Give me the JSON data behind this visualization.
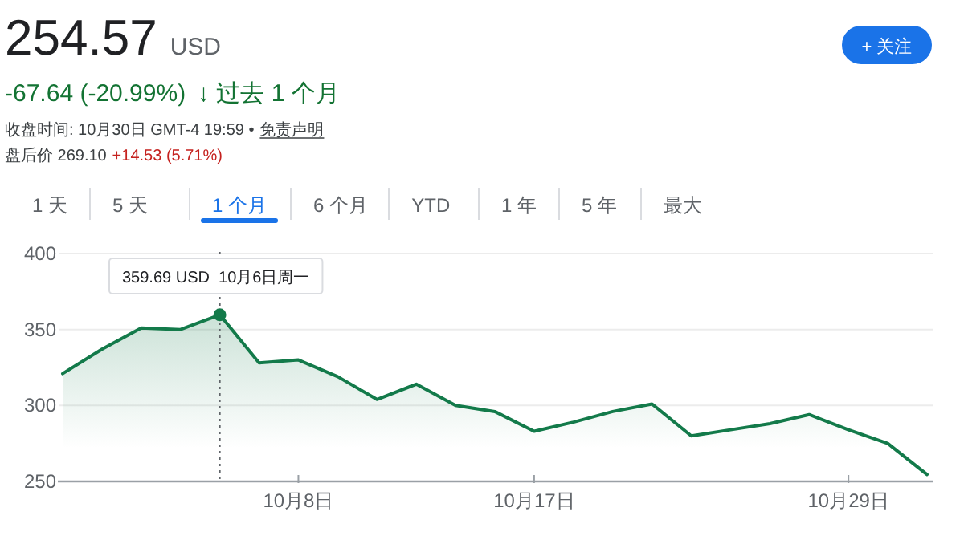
{
  "chart_data": {
    "type": "area",
    "title": "254.57",
    "subtitle": "USD",
    "annotations": [
      "-67.64 (-20.99%)",
      "↓ 过去 1 个月",
      "收盘时间: 10月30日 GMT-4 19:59 •",
      "免责声明",
      "盘后价 269.10",
      "+14.53 (5.71%)",
      "+ 关注",
      "1 天",
      "5 天",
      "1 个月",
      "6 个月",
      "YTD",
      "1 年",
      "5 年",
      "最大",
      {
        "text": "359.69 USD  10月6日周一",
        "y": 359.69
      }
    ],
    "categories": [
      null,
      null,
      null,
      null,
      null,
      null,
      "10月8日",
      null,
      null,
      null,
      null,
      null,
      "10月17日",
      null,
      null,
      null,
      null,
      null,
      null,
      null,
      "10月29日",
      null,
      null
    ],
    "series": [
      {
        "color": "#137a4a",
        "values": [
          321,
          337,
          351,
          350,
          359.69,
          328,
          330,
          319,
          304,
          314,
          300,
          296,
          283,
          289,
          296,
          301,
          280,
          284,
          288,
          294,
          284,
          275,
          254.57
        ]
      }
    ],
    "ylim": [
      250,
      400
    ],
    "yticks": [
      250,
      300,
      350,
      400
    ],
    "grid": "y"
  }
}
